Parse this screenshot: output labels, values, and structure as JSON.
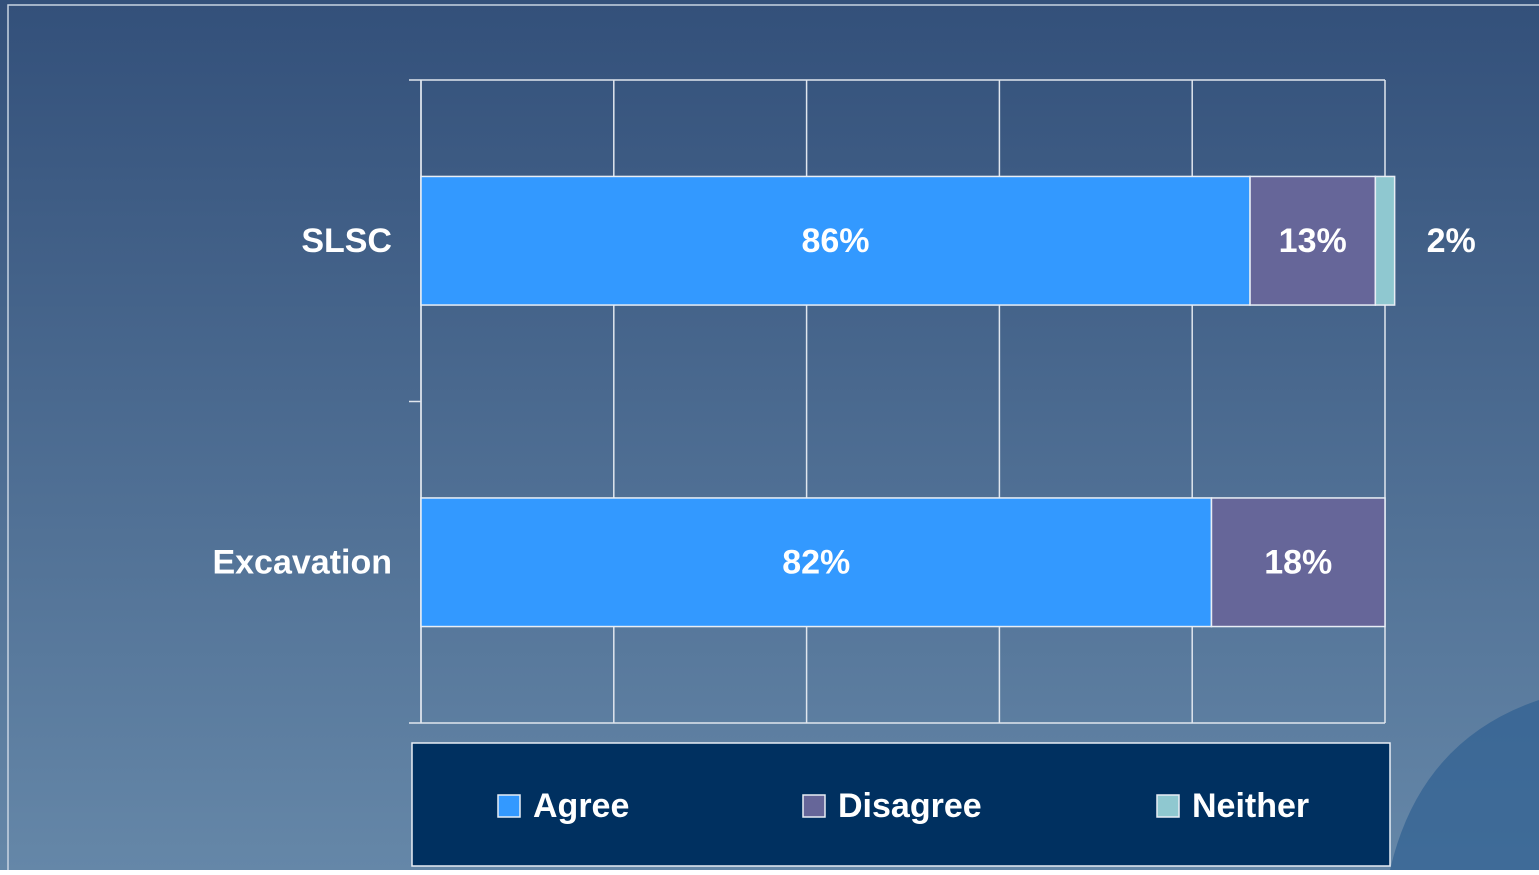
{
  "chart_data": {
    "type": "stacked_bar_horizontal",
    "categories": [
      "SLSC",
      "Excavation"
    ],
    "series": [
      {
        "name": "Agree",
        "color": "#3399ff",
        "values": [
          86,
          82
        ],
        "value_labels": [
          "86%",
          "82%"
        ]
      },
      {
        "name": "Disagree",
        "color": "#666699",
        "values": [
          13,
          18
        ],
        "value_labels": [
          "13%",
          "18%"
        ]
      },
      {
        "name": "Neither",
        "color": "#8fc8d0",
        "values": [
          2,
          null
        ],
        "value_labels": [
          "2%",
          null
        ]
      }
    ],
    "xlim": [
      0,
      100
    ],
    "xticks": [
      0,
      20,
      40,
      60,
      80,
      100
    ],
    "grid": true,
    "legend": "bottom"
  }
}
